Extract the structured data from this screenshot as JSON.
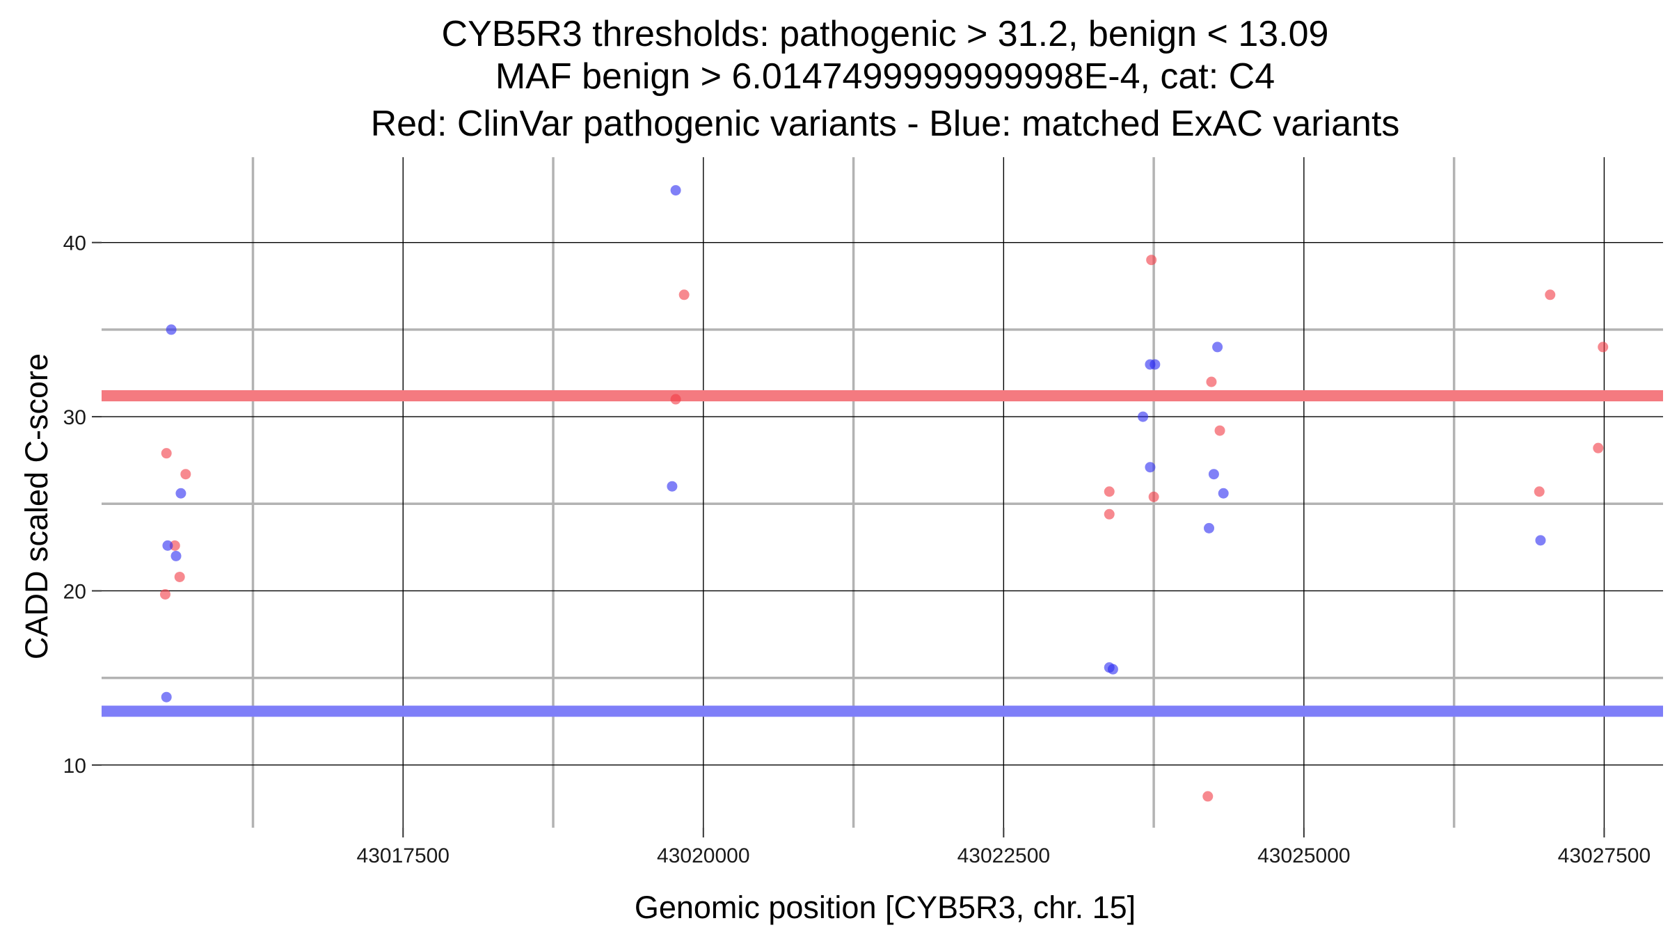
{
  "chart_data": {
    "type": "scatter",
    "title_lines": [
      "CYB5R3 thresholds: pathogenic > 31.2, benign < 13.09",
      "MAF benign > 6.0147499999999998E-4, cat: C4",
      "Red: ClinVar pathogenic variants - Blue: matched ExAC variants"
    ],
    "xlabel": "Genomic position [CYB5R3, chr. 15]",
    "ylabel": "CADD scaled C-score",
    "xlim": [
      43014990,
      43027990
    ],
    "ylim": [
      6.4,
      44.9
    ],
    "x_major_ticks": [
      43017500,
      43020000,
      43022500,
      43025000,
      43027500
    ],
    "x_tick_labels": [
      "43017500",
      "43020000",
      "43022500",
      "43025000",
      "43027500"
    ],
    "x_minor_ticks": [
      43016250,
      43018750,
      43021250,
      43023750,
      43026250
    ],
    "y_major_ticks": [
      10,
      20,
      30,
      40
    ],
    "y_tick_labels": [
      "10",
      "20",
      "30",
      "40"
    ],
    "y_minor_ticks": [
      15,
      25,
      35
    ],
    "grid": true,
    "thresholds": [
      {
        "name": "pathogenic",
        "value": 31.2,
        "color": "#f47a80"
      },
      {
        "name": "benign",
        "value": 13.09,
        "color": "#7e7ef8"
      }
    ],
    "series": [
      {
        "name": "ClinVar pathogenic variants",
        "color": "#f23b44",
        "points": [
          {
            "x": 43015520,
            "y": 19.8
          },
          {
            "x": 43015530,
            "y": 27.9
          },
          {
            "x": 43015600,
            "y": 22.6
          },
          {
            "x": 43015640,
            "y": 20.8
          },
          {
            "x": 43015690,
            "y": 26.7
          },
          {
            "x": 43019770,
            "y": 31.0
          },
          {
            "x": 43019840,
            "y": 37.0
          },
          {
            "x": 43023380,
            "y": 25.7
          },
          {
            "x": 43023380,
            "y": 24.4
          },
          {
            "x": 43023730,
            "y": 39.0
          },
          {
            "x": 43023750,
            "y": 25.4
          },
          {
            "x": 43024230,
            "y": 32.0
          },
          {
            "x": 43024200,
            "y": 8.2
          },
          {
            "x": 43024300,
            "y": 29.2
          },
          {
            "x": 43026960,
            "y": 25.7
          },
          {
            "x": 43027050,
            "y": 37.0
          },
          {
            "x": 43027450,
            "y": 28.2
          },
          {
            "x": 43027490,
            "y": 34.0
          }
        ]
      },
      {
        "name": "matched ExAC variants",
        "color": "#2c2cf2",
        "points": [
          {
            "x": 43015530,
            "y": 13.9
          },
          {
            "x": 43015540,
            "y": 22.6
          },
          {
            "x": 43015570,
            "y": 35.0
          },
          {
            "x": 43015610,
            "y": 22.0
          },
          {
            "x": 43015650,
            "y": 25.6
          },
          {
            "x": 43019740,
            "y": 26.0
          },
          {
            "x": 43019770,
            "y": 43.0
          },
          {
            "x": 43023380,
            "y": 15.6
          },
          {
            "x": 43023410,
            "y": 15.5
          },
          {
            "x": 43023660,
            "y": 30.0
          },
          {
            "x": 43023720,
            "y": 27.1
          },
          {
            "x": 43023720,
            "y": 33.0
          },
          {
            "x": 43023760,
            "y": 33.0
          },
          {
            "x": 43024210,
            "y": 23.6
          },
          {
            "x": 43024250,
            "y": 26.7
          },
          {
            "x": 43024280,
            "y": 34.0
          },
          {
            "x": 43024330,
            "y": 25.6
          },
          {
            "x": 43026970,
            "y": 22.9
          }
        ]
      }
    ]
  }
}
